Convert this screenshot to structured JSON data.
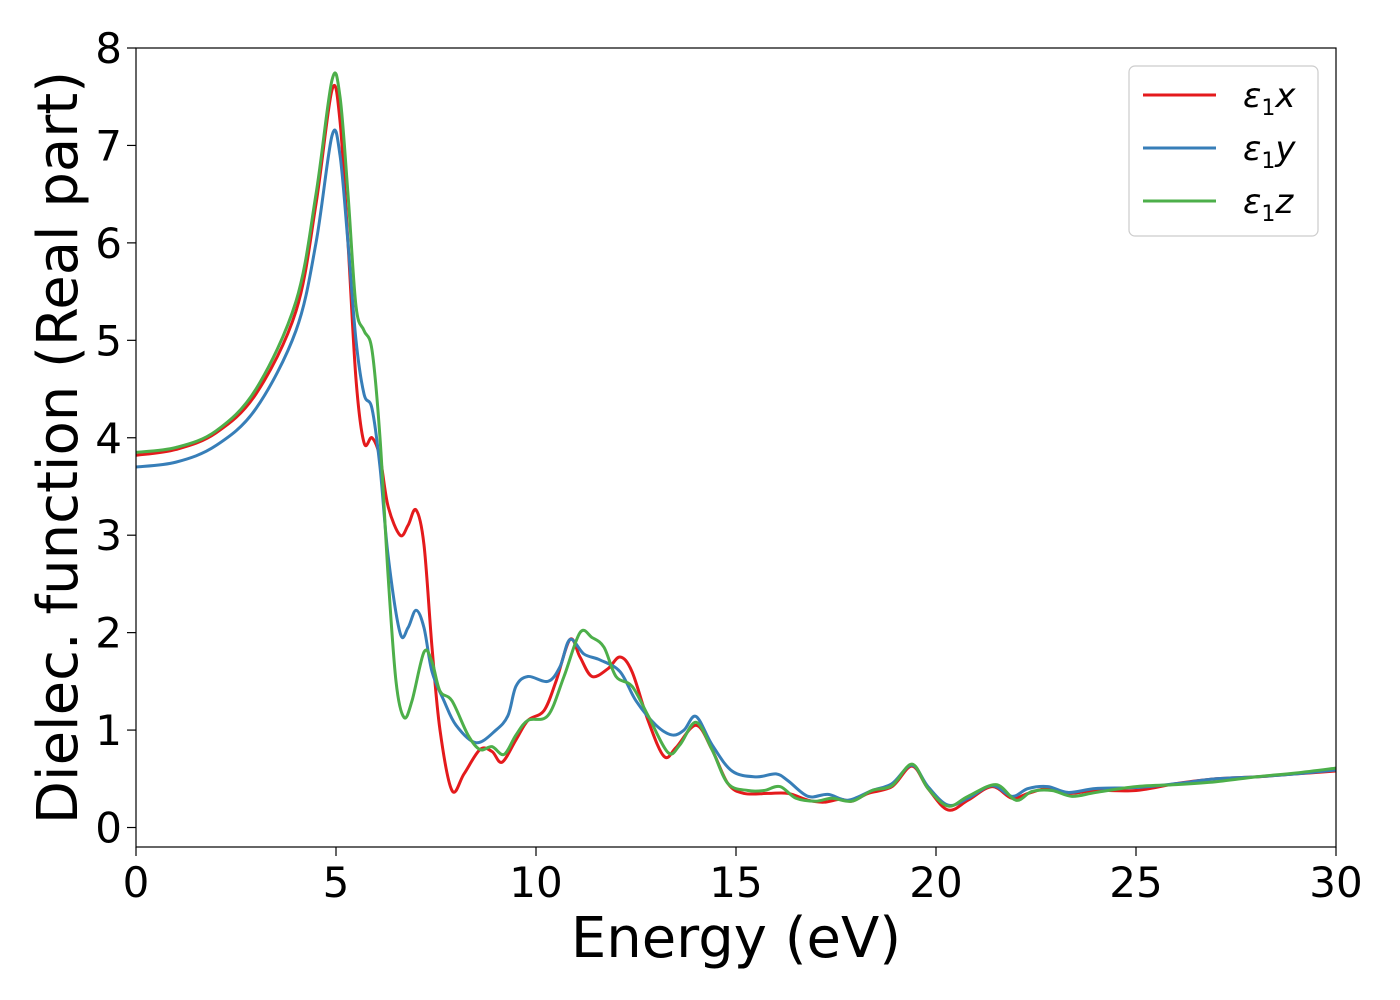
{
  "chart_data": {
    "type": "line",
    "title": "",
    "xlabel": "Energy (eV)",
    "ylabel": "Dielec. function (Real part)",
    "xlim": [
      0,
      30
    ],
    "ylim": [
      -0.2,
      8.0
    ],
    "xticks": [
      0,
      5,
      10,
      15,
      20,
      25,
      30
    ],
    "yticks": [
      0,
      1,
      2,
      3,
      4,
      5,
      6,
      7,
      8
    ],
    "grid": false,
    "legend_position": "top-right",
    "series": [
      {
        "name": "ε1x",
        "legend_base": "ε",
        "legend_sub": "1",
        "legend_tail": "x",
        "color": "#e41a1c",
        "points": [
          [
            0,
            3.82
          ],
          [
            1,
            3.88
          ],
          [
            2,
            4.05
          ],
          [
            3,
            4.45
          ],
          [
            4,
            5.3
          ],
          [
            4.5,
            6.4
          ],
          [
            4.9,
            7.57
          ],
          [
            5.1,
            7.25
          ],
          [
            5.3,
            6.0
          ],
          [
            5.5,
            4.6
          ],
          [
            5.7,
            3.95
          ],
          [
            5.9,
            4.0
          ],
          [
            6.1,
            3.8
          ],
          [
            6.3,
            3.3
          ],
          [
            6.6,
            3.0
          ],
          [
            6.8,
            3.1
          ],
          [
            7.0,
            3.26
          ],
          [
            7.2,
            2.9
          ],
          [
            7.4,
            1.85
          ],
          [
            7.6,
            1.0
          ],
          [
            7.9,
            0.38
          ],
          [
            8.2,
            0.55
          ],
          [
            8.6,
            0.8
          ],
          [
            8.9,
            0.78
          ],
          [
            9.15,
            0.67
          ],
          [
            9.5,
            0.9
          ],
          [
            9.8,
            1.1
          ],
          [
            10.2,
            1.2
          ],
          [
            10.5,
            1.5
          ],
          [
            10.85,
            1.93
          ],
          [
            11.1,
            1.75
          ],
          [
            11.4,
            1.55
          ],
          [
            11.8,
            1.63
          ],
          [
            12.1,
            1.75
          ],
          [
            12.4,
            1.6
          ],
          [
            12.8,
            1.1
          ],
          [
            13.2,
            0.73
          ],
          [
            13.5,
            0.82
          ],
          [
            14.0,
            1.05
          ],
          [
            14.4,
            0.8
          ],
          [
            14.8,
            0.45
          ],
          [
            15.2,
            0.35
          ],
          [
            15.8,
            0.35
          ],
          [
            16.3,
            0.35
          ],
          [
            16.8,
            0.28
          ],
          [
            17.2,
            0.26
          ],
          [
            17.6,
            0.29
          ],
          [
            17.9,
            0.27
          ],
          [
            18.3,
            0.35
          ],
          [
            18.9,
            0.42
          ],
          [
            19.4,
            0.63
          ],
          [
            19.8,
            0.4
          ],
          [
            20.3,
            0.18
          ],
          [
            20.8,
            0.28
          ],
          [
            21.4,
            0.42
          ],
          [
            21.9,
            0.3
          ],
          [
            22.3,
            0.35
          ],
          [
            22.8,
            0.4
          ],
          [
            23.3,
            0.35
          ],
          [
            24.0,
            0.38
          ],
          [
            25.0,
            0.38
          ],
          [
            26.0,
            0.45
          ],
          [
            27.0,
            0.5
          ],
          [
            28.0,
            0.52
          ],
          [
            29.0,
            0.55
          ],
          [
            30.0,
            0.58
          ]
        ]
      },
      {
        "name": "ε1y",
        "legend_base": "ε",
        "legend_sub": "1",
        "legend_tail": "y",
        "color": "#377eb8",
        "points": [
          [
            0,
            3.7
          ],
          [
            1,
            3.75
          ],
          [
            2,
            3.92
          ],
          [
            3,
            4.3
          ],
          [
            4,
            5.1
          ],
          [
            4.5,
            6.0
          ],
          [
            4.9,
            7.1
          ],
          [
            5.1,
            6.9
          ],
          [
            5.3,
            6.0
          ],
          [
            5.5,
            5.0
          ],
          [
            5.7,
            4.45
          ],
          [
            5.9,
            4.3
          ],
          [
            6.1,
            3.7
          ],
          [
            6.3,
            2.8
          ],
          [
            6.6,
            2.0
          ],
          [
            6.8,
            2.05
          ],
          [
            7.0,
            2.23
          ],
          [
            7.2,
            2.05
          ],
          [
            7.4,
            1.6
          ],
          [
            7.7,
            1.3
          ],
          [
            8.0,
            1.05
          ],
          [
            8.5,
            0.87
          ],
          [
            9.0,
            1.0
          ],
          [
            9.3,
            1.15
          ],
          [
            9.5,
            1.45
          ],
          [
            9.8,
            1.55
          ],
          [
            10.3,
            1.5
          ],
          [
            10.6,
            1.65
          ],
          [
            10.85,
            1.93
          ],
          [
            11.2,
            1.78
          ],
          [
            11.6,
            1.72
          ],
          [
            12.1,
            1.6
          ],
          [
            12.5,
            1.3
          ],
          [
            13.0,
            1.05
          ],
          [
            13.4,
            0.95
          ],
          [
            13.7,
            1.0
          ],
          [
            14.0,
            1.14
          ],
          [
            14.4,
            0.85
          ],
          [
            14.9,
            0.58
          ],
          [
            15.5,
            0.52
          ],
          [
            16.0,
            0.55
          ],
          [
            16.3,
            0.48
          ],
          [
            16.8,
            0.32
          ],
          [
            17.3,
            0.34
          ],
          [
            17.8,
            0.28
          ],
          [
            18.4,
            0.38
          ],
          [
            18.9,
            0.45
          ],
          [
            19.4,
            0.64
          ],
          [
            19.8,
            0.42
          ],
          [
            20.3,
            0.23
          ],
          [
            20.8,
            0.3
          ],
          [
            21.4,
            0.43
          ],
          [
            21.9,
            0.32
          ],
          [
            22.3,
            0.4
          ],
          [
            22.8,
            0.42
          ],
          [
            23.3,
            0.36
          ],
          [
            24.0,
            0.4
          ],
          [
            25.0,
            0.41
          ],
          [
            26.0,
            0.45
          ],
          [
            27.0,
            0.5
          ],
          [
            28.0,
            0.52
          ],
          [
            29.0,
            0.55
          ],
          [
            30.0,
            0.59
          ]
        ]
      },
      {
        "name": "ε1z",
        "legend_base": "ε",
        "legend_sub": "1",
        "legend_tail": "z",
        "color": "#4daf4a",
        "points": [
          [
            0,
            3.85
          ],
          [
            1,
            3.9
          ],
          [
            2,
            4.07
          ],
          [
            3,
            4.5
          ],
          [
            4,
            5.4
          ],
          [
            4.5,
            6.5
          ],
          [
            4.9,
            7.67
          ],
          [
            5.1,
            7.5
          ],
          [
            5.3,
            6.5
          ],
          [
            5.5,
            5.35
          ],
          [
            5.7,
            5.1
          ],
          [
            5.9,
            4.9
          ],
          [
            6.1,
            4.0
          ],
          [
            6.3,
            2.6
          ],
          [
            6.5,
            1.5
          ],
          [
            6.7,
            1.13
          ],
          [
            6.9,
            1.3
          ],
          [
            7.2,
            1.8
          ],
          [
            7.4,
            1.7
          ],
          [
            7.6,
            1.4
          ],
          [
            7.9,
            1.3
          ],
          [
            8.3,
            0.95
          ],
          [
            8.6,
            0.8
          ],
          [
            8.9,
            0.83
          ],
          [
            9.2,
            0.75
          ],
          [
            9.5,
            0.95
          ],
          [
            9.8,
            1.1
          ],
          [
            10.3,
            1.15
          ],
          [
            10.7,
            1.55
          ],
          [
            11.1,
            2.0
          ],
          [
            11.4,
            1.95
          ],
          [
            11.7,
            1.85
          ],
          [
            12.0,
            1.55
          ],
          [
            12.4,
            1.45
          ],
          [
            12.8,
            1.15
          ],
          [
            13.3,
            0.77
          ],
          [
            13.6,
            0.85
          ],
          [
            14.0,
            1.08
          ],
          [
            14.4,
            0.8
          ],
          [
            14.8,
            0.45
          ],
          [
            15.3,
            0.38
          ],
          [
            15.7,
            0.38
          ],
          [
            16.1,
            0.42
          ],
          [
            16.5,
            0.3
          ],
          [
            17.0,
            0.27
          ],
          [
            17.4,
            0.3
          ],
          [
            17.9,
            0.27
          ],
          [
            18.4,
            0.38
          ],
          [
            18.9,
            0.43
          ],
          [
            19.4,
            0.65
          ],
          [
            19.8,
            0.4
          ],
          [
            20.3,
            0.22
          ],
          [
            20.8,
            0.32
          ],
          [
            21.5,
            0.44
          ],
          [
            22.0,
            0.28
          ],
          [
            22.4,
            0.37
          ],
          [
            22.9,
            0.38
          ],
          [
            23.4,
            0.32
          ],
          [
            24.0,
            0.36
          ],
          [
            25.0,
            0.42
          ],
          [
            26.0,
            0.44
          ],
          [
            27.0,
            0.47
          ],
          [
            28.0,
            0.52
          ],
          [
            29.0,
            0.56
          ],
          [
            30.0,
            0.61
          ]
        ]
      }
    ]
  }
}
